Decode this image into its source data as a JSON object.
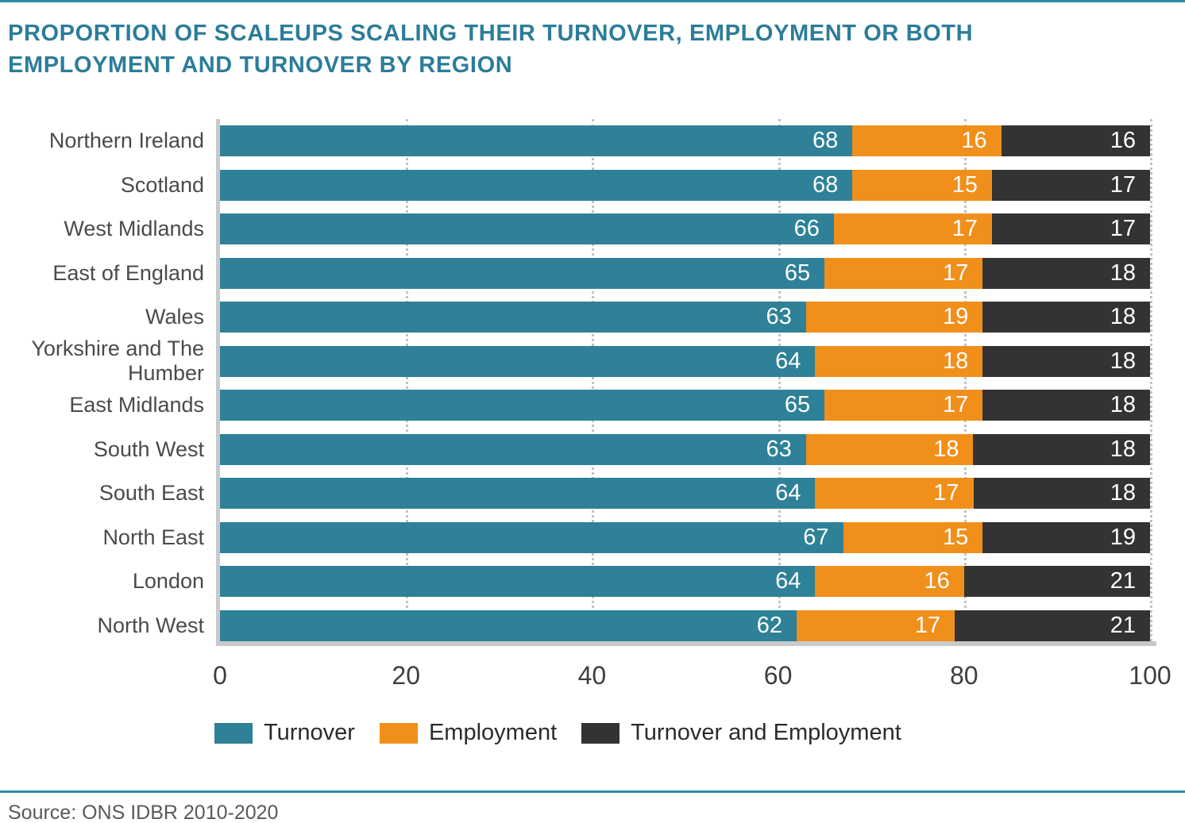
{
  "title": {
    "line1": "PROPORTION OF SCALEUPS SCALING THEIR TURNOVER, EMPLOYMENT OR BOTH",
    "line2": "EMPLOYMENT AND TURNOVER BY REGION"
  },
  "source": "Source: ONS IDBR 2010-2020",
  "colors": {
    "turnover": "#2E8197",
    "employment": "#F18F1B",
    "both": "#333333",
    "accent_rule": "#2E8BA1",
    "title_text": "#2C7D99",
    "axis_line": "#C8C9CB",
    "grid_dot": "#C2C2C2",
    "category_label": "#4A4A4D",
    "tick_label": "#3E3E41",
    "legend_label": "#2B2B2D",
    "value_label": "#FFFFFF"
  },
  "chart_data": {
    "type": "bar",
    "orientation": "horizontal",
    "stacked": true,
    "unit": "percent",
    "title": "Proportion of scaleups scaling their turnover, employment or both employment and turnover by region",
    "xlabel": "",
    "ylabel": "",
    "xlim": [
      0,
      100
    ],
    "x_ticks": [
      0,
      20,
      40,
      60,
      80,
      100
    ],
    "grid": "dotted-vertical",
    "legend_position": "bottom",
    "value_labels": "inside-right",
    "categories": [
      "Northern Ireland",
      "Scotland",
      "West Midlands",
      "East of England",
      "Wales",
      "Yorkshire and The Humber",
      "East Midlands",
      "South West",
      "South East",
      "North East",
      "London",
      "North West"
    ],
    "series": [
      {
        "name": "Turnover",
        "color": "#2E8197",
        "values": [
          68,
          68,
          66,
          65,
          63,
          64,
          65,
          63,
          64,
          67,
          64,
          62
        ]
      },
      {
        "name": "Employment",
        "color": "#F18F1B",
        "values": [
          16,
          15,
          17,
          17,
          19,
          18,
          17,
          18,
          17,
          15,
          16,
          17
        ]
      },
      {
        "name": "Turnover and Employment",
        "color": "#333333",
        "values": [
          16,
          17,
          17,
          18,
          18,
          18,
          18,
          18,
          18,
          19,
          21,
          21
        ]
      }
    ]
  }
}
